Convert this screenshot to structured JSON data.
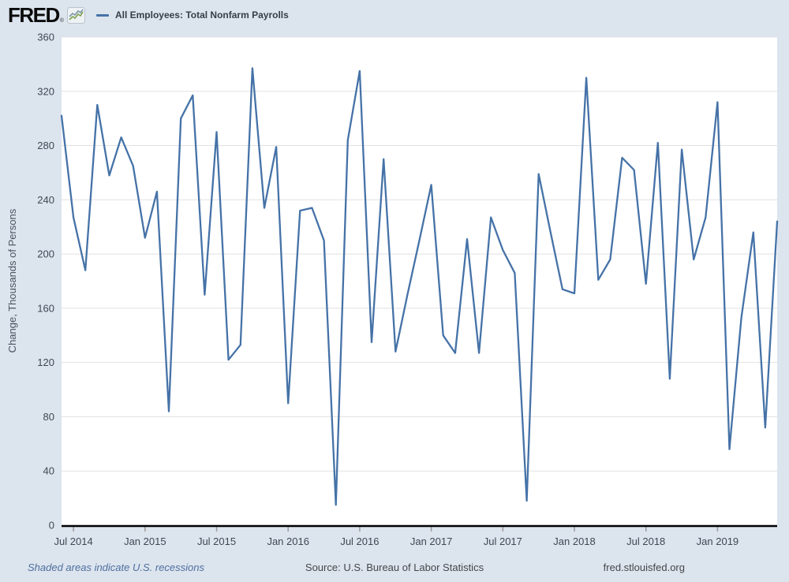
{
  "header": {
    "logo_text": "FRED",
    "logo_reg": "®",
    "series_legend": {
      "label": "All Employees: Total Nonfarm Payrolls",
      "color": "#4572a7"
    }
  },
  "footer": {
    "recession_note": "Shaded areas indicate U.S. recessions",
    "source": "Source: U.S. Bureau of Labor Statistics",
    "site": "fred.stlouisfed.org"
  },
  "chart_data": {
    "type": "line",
    "title": "All Employees: Total Nonfarm Payrolls",
    "ylabel": "Change, Thousands of Persons",
    "ylim": [
      0,
      360
    ],
    "ytick_step": 40,
    "grid": true,
    "legend_position": "top-left",
    "line_color": "#4572a7",
    "x": [
      "2014-06",
      "2014-07",
      "2014-08",
      "2014-09",
      "2014-10",
      "2014-11",
      "2014-12",
      "2015-01",
      "2015-02",
      "2015-03",
      "2015-04",
      "2015-05",
      "2015-06",
      "2015-07",
      "2015-08",
      "2015-09",
      "2015-10",
      "2015-11",
      "2015-12",
      "2016-01",
      "2016-02",
      "2016-03",
      "2016-04",
      "2016-05",
      "2016-06",
      "2016-07",
      "2016-08",
      "2016-09",
      "2016-10",
      "2016-11",
      "2016-12",
      "2017-01",
      "2017-02",
      "2017-03",
      "2017-04",
      "2017-05",
      "2017-06",
      "2017-07",
      "2017-08",
      "2017-09",
      "2017-10",
      "2017-11",
      "2017-12",
      "2018-01",
      "2018-02",
      "2018-03",
      "2018-04",
      "2018-05",
      "2018-06",
      "2018-07",
      "2018-08",
      "2018-09",
      "2018-10",
      "2018-11",
      "2018-12",
      "2019-01",
      "2019-02",
      "2019-03",
      "2019-04",
      "2019-05",
      "2019-06"
    ],
    "values": [
      302,
      227,
      188,
      310,
      258,
      286,
      265,
      212,
      246,
      84,
      300,
      317,
      170,
      290,
      122,
      133,
      337,
      234,
      279,
      90,
      232,
      234,
      210,
      15,
      284,
      335,
      135,
      270,
      128,
      170,
      210,
      251,
      140,
      127,
      211,
      127,
      227,
      203,
      186,
      18,
      259,
      216,
      174,
      171,
      330,
      181,
      196,
      271,
      262,
      178,
      282,
      108,
      277,
      196,
      227,
      312,
      56,
      153,
      216,
      72,
      224
    ],
    "xticks": [
      {
        "label": "Jul 2014",
        "index": 1
      },
      {
        "label": "Jan 2015",
        "index": 7
      },
      {
        "label": "Jul 2015",
        "index": 13
      },
      {
        "label": "Jan 2016",
        "index": 19
      },
      {
        "label": "Jul 2016",
        "index": 25
      },
      {
        "label": "Jan 2017",
        "index": 31
      },
      {
        "label": "Jul 2017",
        "index": 37
      },
      {
        "label": "Jan 2018",
        "index": 43
      },
      {
        "label": "Jul 2018",
        "index": 49
      },
      {
        "label": "Jan 2019",
        "index": 55
      }
    ]
  }
}
